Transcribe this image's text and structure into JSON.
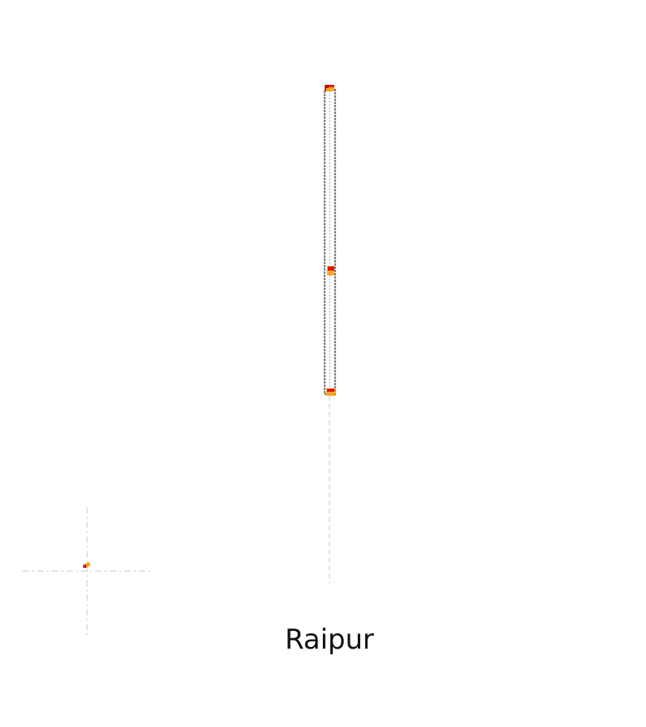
{
  "place": {
    "name": "Raipur"
  },
  "colors": {
    "route_outline": "#7f7f7f",
    "marker_red": "#e0190f",
    "marker_orange": "#f5a623",
    "guide_line": "#d9d9d9"
  }
}
